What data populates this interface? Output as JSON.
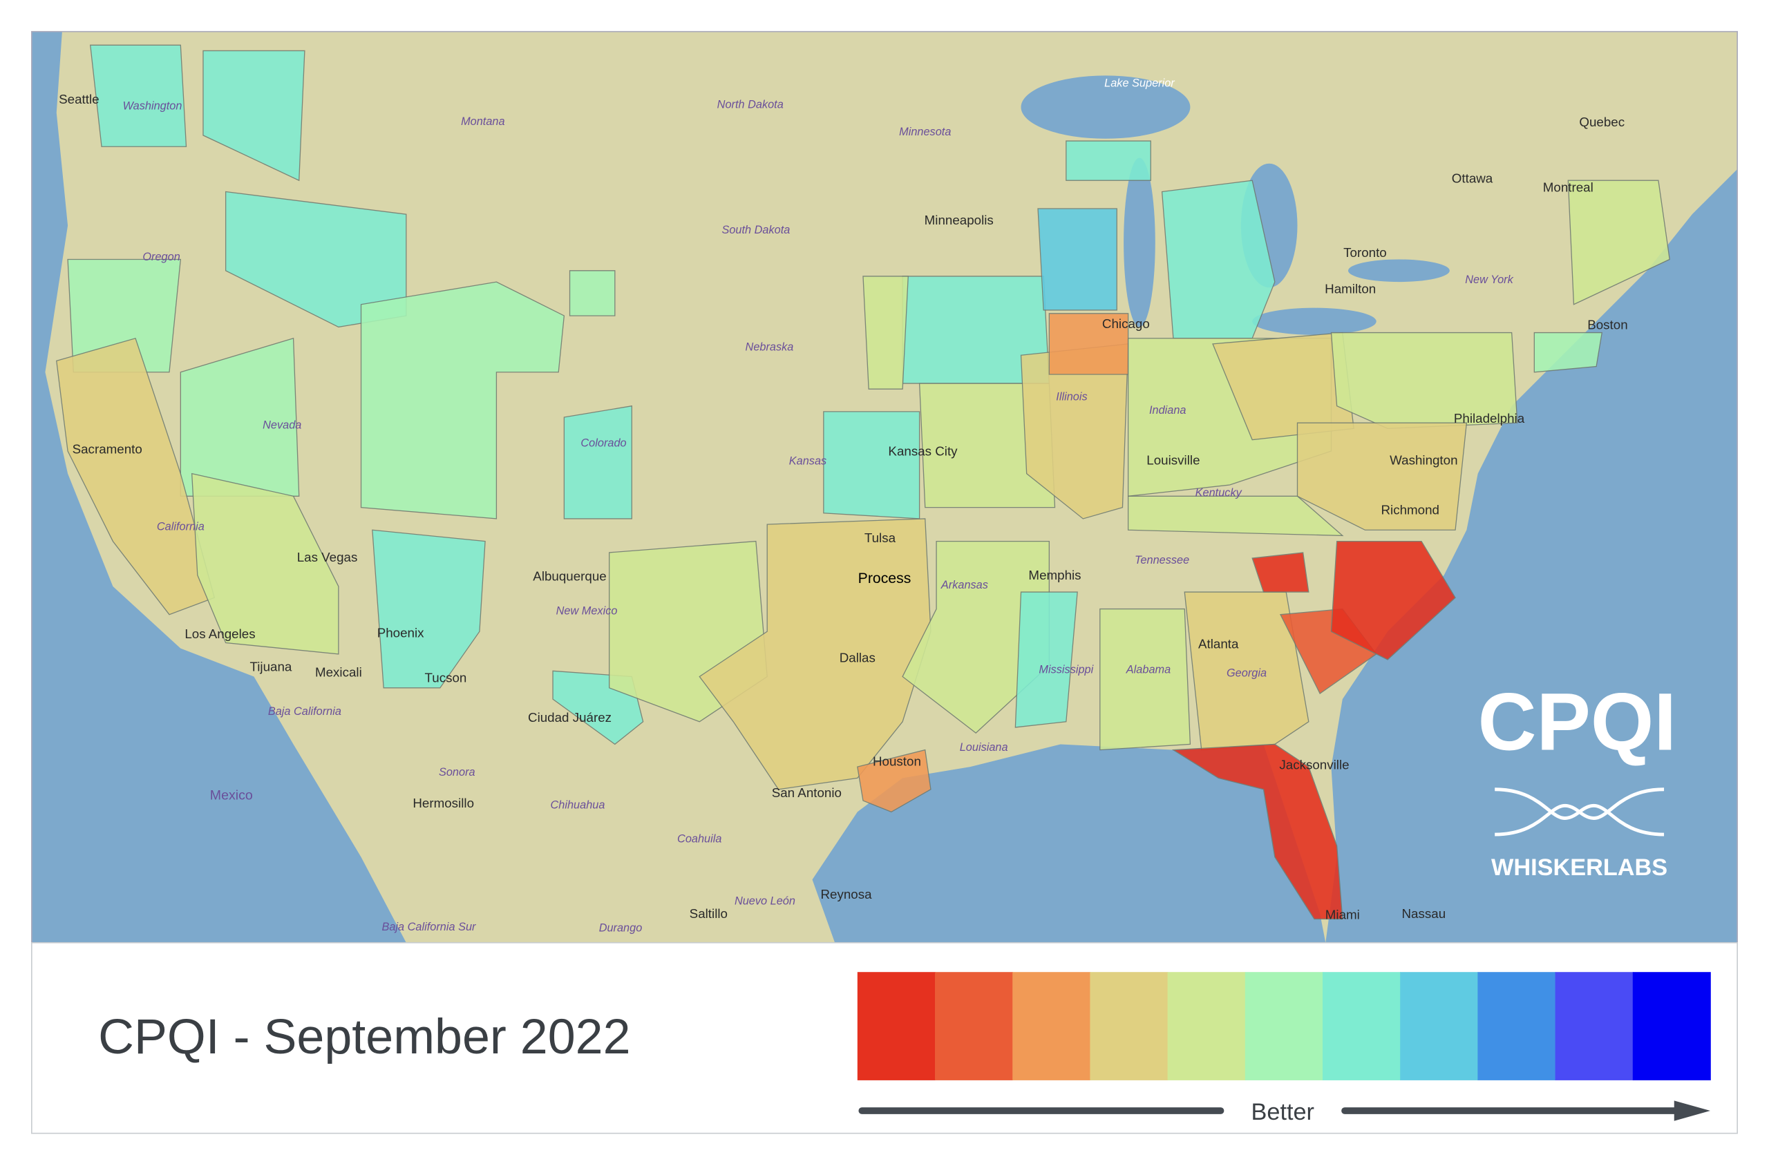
{
  "map": {
    "labels": [
      "Seattle",
      "Washington",
      "Montana",
      "North Dakota",
      "Minnesota",
      "Lake Superior",
      "Quebec",
      "Ottawa",
      "Montreal",
      "Minneapolis",
      "Oregon",
      "South Dakota",
      "Toronto",
      "Hamilton",
      "New York",
      "Boston",
      "Nebraska",
      "Chicago",
      "Colorado",
      "Kansas City",
      "Kansas",
      "Illinois",
      "Indiana",
      "Louisville",
      "Kentucky",
      "Philadelphia",
      "Washington",
      "Richmond",
      "Sacramento",
      "Nevada",
      "California",
      "Las Vegas",
      "Tennessee",
      "Memphis",
      "Albuquerque",
      "New Mexico",
      "Tulsa",
      "Process",
      "Arkansas",
      "Atlanta",
      "Los Angeles",
      "Phoenix",
      "Tijuana",
      "Mexicali",
      "Tucson",
      "Dallas",
      "Mississippi",
      "Alabama",
      "Georgia",
      "Baja California",
      "Ciudad Juárez",
      "Louisiana",
      "Houston",
      "Jacksonville",
      "Sonora",
      "Mexico",
      "Hermosillo",
      "Chihuahua",
      "San Antonio",
      "Coahuila",
      "Reynosa",
      "Nuevo León",
      "Saltillo",
      "Miami",
      "Nassau",
      "Durango",
      "Baja California Sur"
    ]
  },
  "logo": {
    "name": "CPQI",
    "company": "WHISKERLABS"
  },
  "footer": {
    "title": "CPQI - September 2022",
    "legend": {
      "colors": [
        "#e5311f",
        "#ea5c36",
        "#f19a56",
        "#e0d081",
        "#cfe894",
        "#a6f4b5",
        "#7eecd1",
        "#5fcbe2",
        "#4090e6",
        "#4a4bf5",
        "#0000f5"
      ],
      "caption": "Better"
    }
  }
}
